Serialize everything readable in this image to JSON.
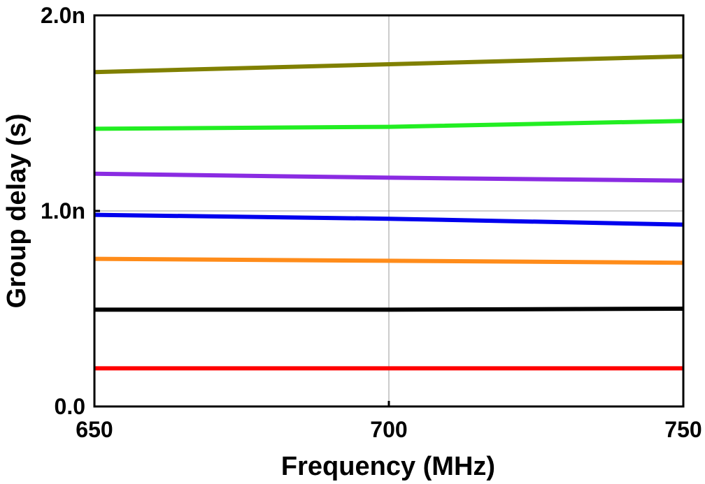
{
  "chart_data": {
    "type": "line",
    "title": "",
    "xlabel": "Frequency (MHz)",
    "ylabel": "Group delay (s)",
    "xlim": [
      650,
      750
    ],
    "ylim": [
      0,
      2e-09
    ],
    "x_ticks": [
      {
        "value": 650,
        "label": "650"
      },
      {
        "value": 700,
        "label": "700"
      },
      {
        "value": 750,
        "label": "750"
      }
    ],
    "y_ticks": [
      {
        "value": 0,
        "label": "0.0"
      },
      {
        "value": 1e-09,
        "label": "1.0n"
      },
      {
        "value": 2e-09,
        "label": "2.0n"
      }
    ],
    "grid": {
      "x": [
        700
      ],
      "y": [
        1e-09
      ]
    },
    "legend": "none",
    "x": [
      650,
      700,
      750
    ],
    "series": [
      {
        "color": "#808000",
        "values": [
          1.71e-09,
          1.75e-09,
          1.79e-09
        ]
      },
      {
        "color": "#22ee22",
        "values": [
          1.42e-09,
          1.43e-09,
          1.46e-09
        ]
      },
      {
        "color": "#8a2be2",
        "values": [
          1.19e-09,
          1.17e-09,
          1.155e-09
        ]
      },
      {
        "color": "#0000ee",
        "values": [
          9.8e-10,
          9.6e-10,
          9.3e-10
        ]
      },
      {
        "color": "#ff8c1a",
        "values": [
          7.55e-10,
          7.45e-10,
          7.35e-10
        ]
      },
      {
        "color": "#000000",
        "values": [
          4.95e-10,
          4.95e-10,
          5e-10
        ]
      },
      {
        "color": "#ff0000",
        "values": [
          1.95e-10,
          1.95e-10,
          1.95e-10
        ]
      }
    ]
  }
}
